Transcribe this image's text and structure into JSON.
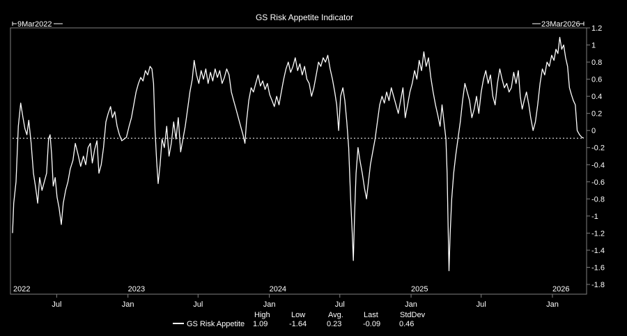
{
  "chart_data": {
    "type": "line",
    "title": "GS Risk Appetite Indicator",
    "start_label": "9Mar2022",
    "end_label": "23Mar2026",
    "x_start": "2022-03-09",
    "x_end": "2026-03-23",
    "ylim": [
      -1.8,
      1.2
    ],
    "y_ticks": [
      "1.2",
      "1",
      "0.8",
      "0.6",
      "0.4",
      "0.2",
      "0",
      "-0.2",
      "-0.4",
      "-0.6",
      "-0.8",
      "-1",
      "-1.2",
      "-1.4",
      "-1.6",
      "-1.8"
    ],
    "x_tick_labels": [
      {
        "date": "2022-07-01",
        "label": "Jul"
      },
      {
        "date": "2023-01-01",
        "label": "Jan"
      },
      {
        "date": "2023-07-01",
        "label": "Jul"
      },
      {
        "date": "2024-01-01",
        "label": "Jan"
      },
      {
        "date": "2024-07-01",
        "label": "Jul"
      },
      {
        "date": "2025-01-01",
        "label": "Jan"
      },
      {
        "date": "2025-07-01",
        "label": "Jul"
      },
      {
        "date": "2026-01-01",
        "label": "Jan"
      }
    ],
    "year_labels": [
      {
        "date": "2022-03-09",
        "label": "2022"
      },
      {
        "date": "2023-01-01",
        "label": "2023"
      },
      {
        "date": "2024-01-01",
        "label": "2024"
      },
      {
        "date": "2025-01-01",
        "label": "2025"
      },
      {
        "date": "2026-01-01",
        "label": "2026"
      }
    ],
    "reference_line": -0.09,
    "series": [
      {
        "name": "GS Risk Appetite",
        "color": "#ffffff",
        "points": [
          [
            "2022-03-09",
            -1.2
          ],
          [
            "2022-03-12",
            -0.85
          ],
          [
            "2022-03-18",
            -0.6
          ],
          [
            "2022-03-24",
            0.05
          ],
          [
            "2022-03-30",
            0.32
          ],
          [
            "2022-04-05",
            0.15
          ],
          [
            "2022-04-10",
            0.02
          ],
          [
            "2022-04-15",
            -0.05
          ],
          [
            "2022-04-20",
            0.12
          ],
          [
            "2022-04-26",
            -0.15
          ],
          [
            "2022-05-02",
            -0.5
          ],
          [
            "2022-05-08",
            -0.68
          ],
          [
            "2022-05-13",
            -0.85
          ],
          [
            "2022-05-18",
            -0.55
          ],
          [
            "2022-05-24",
            -0.7
          ],
          [
            "2022-05-30",
            -0.6
          ],
          [
            "2022-06-05",
            -0.5
          ],
          [
            "2022-06-10",
            -0.1
          ],
          [
            "2022-06-14",
            -0.05
          ],
          [
            "2022-06-18",
            -0.28
          ],
          [
            "2022-06-22",
            -0.65
          ],
          [
            "2022-06-27",
            -0.55
          ],
          [
            "2022-07-02",
            -0.78
          ],
          [
            "2022-07-07",
            -0.9
          ],
          [
            "2022-07-13",
            -1.1
          ],
          [
            "2022-07-18",
            -0.85
          ],
          [
            "2022-07-24",
            -0.7
          ],
          [
            "2022-07-30",
            -0.6
          ],
          [
            "2022-08-05",
            -0.45
          ],
          [
            "2022-08-12",
            -0.35
          ],
          [
            "2022-08-18",
            -0.15
          ],
          [
            "2022-08-25",
            -0.28
          ],
          [
            "2022-09-01",
            -0.42
          ],
          [
            "2022-09-08",
            -0.3
          ],
          [
            "2022-09-14",
            -0.4
          ],
          [
            "2022-09-20",
            -0.2
          ],
          [
            "2022-09-26",
            -0.15
          ],
          [
            "2022-10-01",
            -0.38
          ],
          [
            "2022-10-07",
            -0.22
          ],
          [
            "2022-10-13",
            -0.12
          ],
          [
            "2022-10-18",
            -0.5
          ],
          [
            "2022-10-24",
            -0.4
          ],
          [
            "2022-10-30",
            -0.2
          ],
          [
            "2022-11-05",
            0.1
          ],
          [
            "2022-11-11",
            0.2
          ],
          [
            "2022-11-17",
            0.28
          ],
          [
            "2022-11-22",
            0.15
          ],
          [
            "2022-11-28",
            0.22
          ],
          [
            "2022-12-04",
            0.05
          ],
          [
            "2022-12-10",
            -0.05
          ],
          [
            "2022-12-16",
            -0.12
          ],
          [
            "2022-12-22",
            -0.1
          ],
          [
            "2022-12-28",
            -0.08
          ],
          [
            "2023-01-04",
            0.05
          ],
          [
            "2023-01-10",
            0.15
          ],
          [
            "2023-01-16",
            0.3
          ],
          [
            "2023-01-22",
            0.45
          ],
          [
            "2023-01-28",
            0.55
          ],
          [
            "2023-02-03",
            0.62
          ],
          [
            "2023-02-09",
            0.58
          ],
          [
            "2023-02-15",
            0.7
          ],
          [
            "2023-02-21",
            0.65
          ],
          [
            "2023-02-27",
            0.75
          ],
          [
            "2023-03-04",
            0.72
          ],
          [
            "2023-03-08",
            0.55
          ],
          [
            "2023-03-12",
            0.0
          ],
          [
            "2023-03-16",
            -0.35
          ],
          [
            "2023-03-20",
            -0.62
          ],
          [
            "2023-03-25",
            -0.4
          ],
          [
            "2023-03-30",
            -0.1
          ],
          [
            "2023-04-05",
            -0.2
          ],
          [
            "2023-04-11",
            0.05
          ],
          [
            "2023-04-17",
            -0.3
          ],
          [
            "2023-04-23",
            -0.15
          ],
          [
            "2023-04-29",
            0.1
          ],
          [
            "2023-05-05",
            -0.1
          ],
          [
            "2023-05-11",
            0.15
          ],
          [
            "2023-05-17",
            -0.25
          ],
          [
            "2023-05-23",
            -0.1
          ],
          [
            "2023-05-29",
            0.05
          ],
          [
            "2023-06-04",
            0.25
          ],
          [
            "2023-06-10",
            0.45
          ],
          [
            "2023-06-16",
            0.6
          ],
          [
            "2023-06-21",
            0.82
          ],
          [
            "2023-06-27",
            0.65
          ],
          [
            "2023-07-03",
            0.55
          ],
          [
            "2023-07-09",
            0.7
          ],
          [
            "2023-07-15",
            0.6
          ],
          [
            "2023-07-21",
            0.72
          ],
          [
            "2023-07-27",
            0.55
          ],
          [
            "2023-08-02",
            0.68
          ],
          [
            "2023-08-08",
            0.58
          ],
          [
            "2023-08-14",
            0.72
          ],
          [
            "2023-08-20",
            0.62
          ],
          [
            "2023-08-26",
            0.7
          ],
          [
            "2023-09-01",
            0.55
          ],
          [
            "2023-09-07",
            0.62
          ],
          [
            "2023-09-13",
            0.72
          ],
          [
            "2023-09-19",
            0.65
          ],
          [
            "2023-09-25",
            0.45
          ],
          [
            "2023-10-01",
            0.35
          ],
          [
            "2023-10-07",
            0.25
          ],
          [
            "2023-10-13",
            0.15
          ],
          [
            "2023-10-19",
            0.05
          ],
          [
            "2023-10-25",
            -0.05
          ],
          [
            "2023-10-30",
            -0.15
          ],
          [
            "2023-11-03",
            0.1
          ],
          [
            "2023-11-09",
            0.35
          ],
          [
            "2023-11-15",
            0.5
          ],
          [
            "2023-11-21",
            0.45
          ],
          [
            "2023-11-27",
            0.55
          ],
          [
            "2023-12-03",
            0.65
          ],
          [
            "2023-12-09",
            0.52
          ],
          [
            "2023-12-15",
            0.58
          ],
          [
            "2023-12-21",
            0.48
          ],
          [
            "2023-12-27",
            0.55
          ],
          [
            "2024-01-02",
            0.42
          ],
          [
            "2024-01-08",
            0.35
          ],
          [
            "2024-01-14",
            0.28
          ],
          [
            "2024-01-20",
            0.4
          ],
          [
            "2024-01-26",
            0.3
          ],
          [
            "2024-02-01",
            0.45
          ],
          [
            "2024-02-07",
            0.6
          ],
          [
            "2024-02-13",
            0.72
          ],
          [
            "2024-02-19",
            0.8
          ],
          [
            "2024-02-25",
            0.68
          ],
          [
            "2024-03-02",
            0.75
          ],
          [
            "2024-03-08",
            0.85
          ],
          [
            "2024-03-14",
            0.7
          ],
          [
            "2024-03-20",
            0.78
          ],
          [
            "2024-03-26",
            0.65
          ],
          [
            "2024-04-01",
            0.75
          ],
          [
            "2024-04-07",
            0.6
          ],
          [
            "2024-04-13",
            0.55
          ],
          [
            "2024-04-19",
            0.4
          ],
          [
            "2024-04-25",
            0.5
          ],
          [
            "2024-05-01",
            0.65
          ],
          [
            "2024-05-07",
            0.8
          ],
          [
            "2024-05-13",
            0.75
          ],
          [
            "2024-05-19",
            0.85
          ],
          [
            "2024-05-25",
            0.8
          ],
          [
            "2024-05-31",
            0.88
          ],
          [
            "2024-06-06",
            0.72
          ],
          [
            "2024-06-12",
            0.6
          ],
          [
            "2024-06-18",
            0.45
          ],
          [
            "2024-06-23",
            0.3
          ],
          [
            "2024-06-28",
            0.0
          ],
          [
            "2024-07-03",
            0.4
          ],
          [
            "2024-07-09",
            0.5
          ],
          [
            "2024-07-14",
            0.35
          ],
          [
            "2024-07-19",
            0.1
          ],
          [
            "2024-07-24",
            -0.2
          ],
          [
            "2024-07-29",
            -0.8
          ],
          [
            "2024-08-02",
            -1.2
          ],
          [
            "2024-08-05",
            -1.52
          ],
          [
            "2024-08-08",
            -1.0
          ],
          [
            "2024-08-12",
            -0.5
          ],
          [
            "2024-08-17",
            -0.2
          ],
          [
            "2024-08-22",
            -0.35
          ],
          [
            "2024-08-28",
            -0.5
          ],
          [
            "2024-09-03",
            -0.68
          ],
          [
            "2024-09-08",
            -0.8
          ],
          [
            "2024-09-13",
            -0.6
          ],
          [
            "2024-09-18",
            -0.4
          ],
          [
            "2024-09-24",
            -0.25
          ],
          [
            "2024-09-30",
            -0.1
          ],
          [
            "2024-10-06",
            0.1
          ],
          [
            "2024-10-12",
            0.3
          ],
          [
            "2024-10-18",
            0.4
          ],
          [
            "2024-10-24",
            0.32
          ],
          [
            "2024-10-30",
            0.45
          ],
          [
            "2024-11-05",
            0.35
          ],
          [
            "2024-11-11",
            0.5
          ],
          [
            "2024-11-17",
            0.4
          ],
          [
            "2024-11-23",
            0.3
          ],
          [
            "2024-11-29",
            0.2
          ],
          [
            "2024-12-05",
            0.35
          ],
          [
            "2024-12-11",
            0.5
          ],
          [
            "2024-12-17",
            0.15
          ],
          [
            "2024-12-23",
            0.3
          ],
          [
            "2024-12-29",
            0.45
          ],
          [
            "2025-01-04",
            0.55
          ],
          [
            "2025-01-10",
            0.7
          ],
          [
            "2025-01-16",
            0.6
          ],
          [
            "2025-01-22",
            0.82
          ],
          [
            "2025-01-28",
            0.7
          ],
          [
            "2025-02-03",
            0.92
          ],
          [
            "2025-02-09",
            0.75
          ],
          [
            "2025-02-15",
            0.85
          ],
          [
            "2025-02-21",
            0.62
          ],
          [
            "2025-02-27",
            0.45
          ],
          [
            "2025-03-05",
            0.3
          ],
          [
            "2025-03-11",
            0.18
          ],
          [
            "2025-03-17",
            0.05
          ],
          [
            "2025-03-22",
            0.3
          ],
          [
            "2025-03-27",
            0.1
          ],
          [
            "2025-04-01",
            -0.1
          ],
          [
            "2025-04-04",
            -0.5
          ],
          [
            "2025-04-07",
            -1.2
          ],
          [
            "2025-04-09",
            -1.64
          ],
          [
            "2025-04-12",
            -1.2
          ],
          [
            "2025-04-16",
            -0.8
          ],
          [
            "2025-04-21",
            -0.5
          ],
          [
            "2025-04-26",
            -0.3
          ],
          [
            "2025-05-02",
            -0.1
          ],
          [
            "2025-05-08",
            0.1
          ],
          [
            "2025-05-14",
            0.35
          ],
          [
            "2025-05-20",
            0.55
          ],
          [
            "2025-05-26",
            0.45
          ],
          [
            "2025-06-01",
            0.35
          ],
          [
            "2025-06-07",
            0.15
          ],
          [
            "2025-06-13",
            0.25
          ],
          [
            "2025-06-19",
            0.4
          ],
          [
            "2025-06-25",
            0.2
          ],
          [
            "2025-07-01",
            0.45
          ],
          [
            "2025-07-07",
            0.6
          ],
          [
            "2025-07-13",
            0.7
          ],
          [
            "2025-07-19",
            0.55
          ],
          [
            "2025-07-25",
            0.65
          ],
          [
            "2025-07-31",
            0.4
          ],
          [
            "2025-08-06",
            0.3
          ],
          [
            "2025-08-12",
            0.55
          ],
          [
            "2025-08-18",
            0.72
          ],
          [
            "2025-08-24",
            0.6
          ],
          [
            "2025-08-30",
            0.5
          ],
          [
            "2025-09-05",
            0.55
          ],
          [
            "2025-09-11",
            0.45
          ],
          [
            "2025-09-17",
            0.5
          ],
          [
            "2025-09-23",
            0.68
          ],
          [
            "2025-09-29",
            0.55
          ],
          [
            "2025-10-05",
            0.7
          ],
          [
            "2025-10-10",
            0.4
          ],
          [
            "2025-10-15",
            0.25
          ],
          [
            "2025-10-20",
            0.35
          ],
          [
            "2025-10-26",
            0.45
          ],
          [
            "2025-11-01",
            0.3
          ],
          [
            "2025-11-06",
            0.15
          ],
          [
            "2025-11-12",
            0.0
          ],
          [
            "2025-11-18",
            0.1
          ],
          [
            "2025-11-24",
            0.3
          ],
          [
            "2025-11-30",
            0.55
          ],
          [
            "2025-12-06",
            0.72
          ],
          [
            "2025-12-12",
            0.65
          ],
          [
            "2025-12-18",
            0.8
          ],
          [
            "2025-12-24",
            0.75
          ],
          [
            "2025-12-30",
            0.88
          ],
          [
            "2026-01-05",
            0.82
          ],
          [
            "2026-01-10",
            0.95
          ],
          [
            "2026-01-15",
            0.9
          ],
          [
            "2026-01-20",
            1.09
          ],
          [
            "2026-01-25",
            0.95
          ],
          [
            "2026-01-30",
            1.0
          ],
          [
            "2026-02-04",
            0.85
          ],
          [
            "2026-02-09",
            0.75
          ],
          [
            "2026-02-14",
            0.5
          ],
          [
            "2026-02-19",
            0.42
          ],
          [
            "2026-02-24",
            0.35
          ],
          [
            "2026-03-01",
            0.3
          ],
          [
            "2026-03-06",
            0.0
          ],
          [
            "2026-03-12",
            -0.05
          ],
          [
            "2026-03-18",
            -0.08
          ],
          [
            "2026-03-23",
            -0.09
          ]
        ]
      }
    ],
    "stats": {
      "headers": [
        "High",
        "Low",
        "Avg.",
        "Last",
        "StdDev"
      ],
      "values": [
        "1.09",
        "-1.64",
        "0.23",
        "-0.09",
        "0.46"
      ]
    },
    "grid": false,
    "legend_position": "bottom"
  }
}
